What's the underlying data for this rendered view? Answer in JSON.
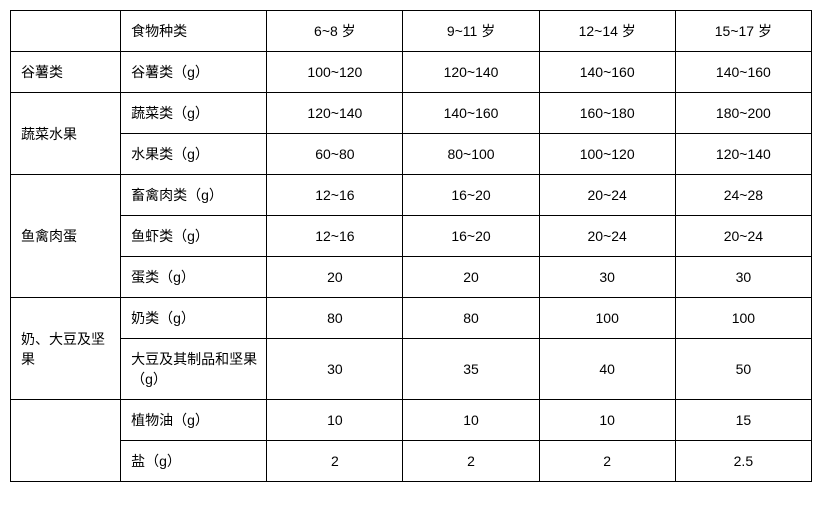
{
  "table": {
    "headers": {
      "category": "",
      "foodType": "食物种类",
      "age1": "6~8 岁",
      "age2": "9~11 岁",
      "age3": "12~14 岁",
      "age4": "15~17 岁"
    },
    "rows": [
      {
        "category": "谷薯类",
        "categoryRowspan": 1,
        "foodType": "谷薯类（g）",
        "values": [
          "100~120",
          "120~140",
          "140~160",
          "140~160"
        ]
      },
      {
        "category": "蔬菜水果",
        "categoryRowspan": 2,
        "foodType": "蔬菜类（g）",
        "values": [
          "120~140",
          "140~160",
          "160~180",
          "180~200"
        ]
      },
      {
        "foodType": "水果类（g）",
        "values": [
          "60~80",
          "80~100",
          "100~120",
          "120~140"
        ]
      },
      {
        "category": "鱼禽肉蛋",
        "categoryRowspan": 3,
        "foodType": "畜禽肉类（g）",
        "values": [
          "12~16",
          "16~20",
          "20~24",
          "24~28"
        ]
      },
      {
        "foodType": "鱼虾类（g）",
        "values": [
          "12~16",
          "16~20",
          "20~24",
          "20~24"
        ]
      },
      {
        "foodType": "蛋类（g）",
        "values": [
          "20",
          "20",
          "30",
          "30"
        ]
      },
      {
        "category": "奶、大豆及坚果",
        "categoryRowspan": 2,
        "foodType": "奶类（g）",
        "values": [
          "80",
          "80",
          "100",
          "100"
        ]
      },
      {
        "foodType": "大豆及其制品和坚果（g）",
        "values": [
          "30",
          "35",
          "40",
          "50"
        ]
      },
      {
        "category": "",
        "categoryRowspan": 2,
        "foodType": "植物油（g）",
        "values": [
          "10",
          "10",
          "10",
          "15"
        ]
      },
      {
        "foodType": "盐（g）",
        "values": [
          "2",
          "2",
          "2",
          "2.5"
        ]
      }
    ],
    "styling": {
      "border_color": "#000000",
      "background_color": "#ffffff",
      "text_color": "#000000",
      "font_size": 14,
      "cell_padding": "10px 8px",
      "col_widths": {
        "category": 110,
        "foodType": 146,
        "value": 136
      }
    }
  }
}
